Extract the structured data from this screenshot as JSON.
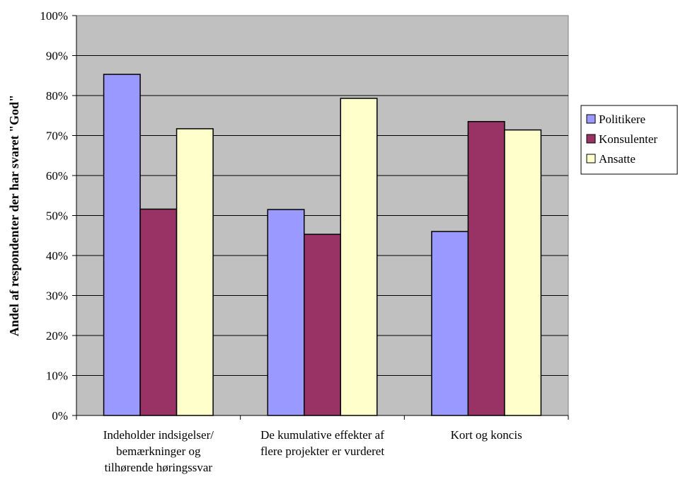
{
  "chart_data": {
    "type": "bar",
    "ylabel": "Andel af respondenter der har svaret \"God\"",
    "xlabel": "",
    "ylim": [
      0,
      100
    ],
    "y_ticks": [
      "0%",
      "10%",
      "20%",
      "30%",
      "40%",
      "50%",
      "60%",
      "70%",
      "80%",
      "90%",
      "100%"
    ],
    "categories": [
      [
        "Indeholder indsigelser/",
        "bemærkninger og",
        "tilhørende høringssvar"
      ],
      [
        "De kumulative effekter af",
        "flere projekter er vurderet"
      ],
      [
        "Kort og koncis"
      ]
    ],
    "series": [
      {
        "name": "Politikere",
        "color": "#9999ff",
        "values": [
          85.3,
          51.5,
          46.0
        ]
      },
      {
        "name": "Konsulenter",
        "color": "#993366",
        "values": [
          51.6,
          45.3,
          73.5
        ]
      },
      {
        "name": "Ansatte",
        "color": "#ffffcc",
        "values": [
          71.7,
          79.3,
          71.4
        ]
      }
    ],
    "grid": true,
    "plot_background": "#c0c0c0",
    "legend_position": "right"
  }
}
